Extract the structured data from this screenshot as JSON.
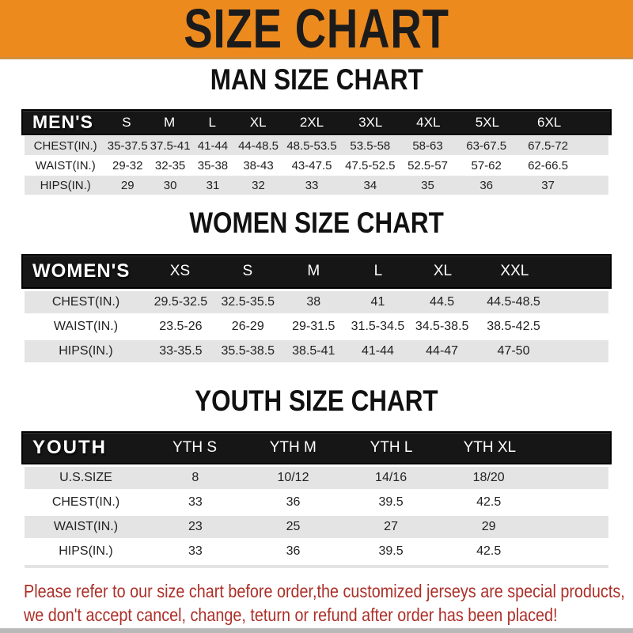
{
  "banner": {
    "title": "SIZE CHART",
    "bg_color": "#ED8A1E",
    "text_color": "#1B1B1B"
  },
  "sections": [
    {
      "heading": "MAN SIZE CHART",
      "corner": "MEN'S",
      "columns": [
        "S",
        "M",
        "L",
        "XL",
        "2XL",
        "3XL",
        "4XL",
        "5XL",
        "6XL"
      ],
      "rows": [
        {
          "label": "CHEST(IN.)",
          "values": [
            "35-37.5",
            "37.5-41",
            "41-44",
            "44-48.5",
            "48.5-53.5",
            "53.5-58",
            "58-63",
            "63-67.5",
            "67.5-72"
          ]
        },
        {
          "label": "WAIST(IN.)",
          "values": [
            "29-32",
            "32-35",
            "35-38",
            "38-43",
            "43-47.5",
            "47.5-52.5",
            "52.5-57",
            "57-62",
            "62-66.5"
          ]
        },
        {
          "label": "HIPS(IN.)",
          "values": [
            "29",
            "30",
            "31",
            "32",
            "33",
            "34",
            "35",
            "36",
            "37"
          ]
        }
      ]
    },
    {
      "heading": "WOMEN SIZE CHART",
      "corner": "WOMEN'S",
      "columns": [
        "XS",
        "S",
        "M",
        "L",
        "XL",
        "XXL"
      ],
      "rows": [
        {
          "label": "CHEST(IN.)",
          "values": [
            "29.5-32.5",
            "32.5-35.5",
            "38",
            "41",
            "44.5",
            "44.5-48.5"
          ]
        },
        {
          "label": "WAIST(IN.)",
          "values": [
            "23.5-26",
            "26-29",
            "29-31.5",
            "31.5-34.5",
            "34.5-38.5",
            "38.5-42.5"
          ]
        },
        {
          "label": "HIPS(IN.)",
          "values": [
            "33-35.5",
            "35.5-38.5",
            "38.5-41",
            "41-44",
            "44-47",
            "47-50"
          ]
        }
      ]
    },
    {
      "heading": "YOUTH SIZE CHART",
      "corner": "YOUTH",
      "columns": [
        "YTH S",
        "YTH M",
        "YTH L",
        "YTH XL"
      ],
      "rows": [
        {
          "label": "U.S.SIZE",
          "values": [
            "8",
            "10/12",
            "14/16",
            "18/20"
          ]
        },
        {
          "label": "CHEST(IN.)",
          "values": [
            "33",
            "36",
            "39.5",
            "42.5"
          ]
        },
        {
          "label": "WAIST(IN.)",
          "values": [
            "23",
            "25",
            "27",
            "29"
          ]
        },
        {
          "label": "HIPS(IN.)",
          "values": [
            "33",
            "36",
            "39.5",
            "42.5"
          ]
        }
      ]
    }
  ],
  "footer": {
    "line1": "Please refer to our size chart before order,the customized jerseys are special products,",
    "line2": "we don't accept cancel, change, teturn or refund after order has been placed!",
    "text_color": "#AC2F28"
  },
  "colors": {
    "header_bar": "#161616",
    "row_gray": "#E4E4E4",
    "bottom_bar": "#B9B9B9"
  }
}
